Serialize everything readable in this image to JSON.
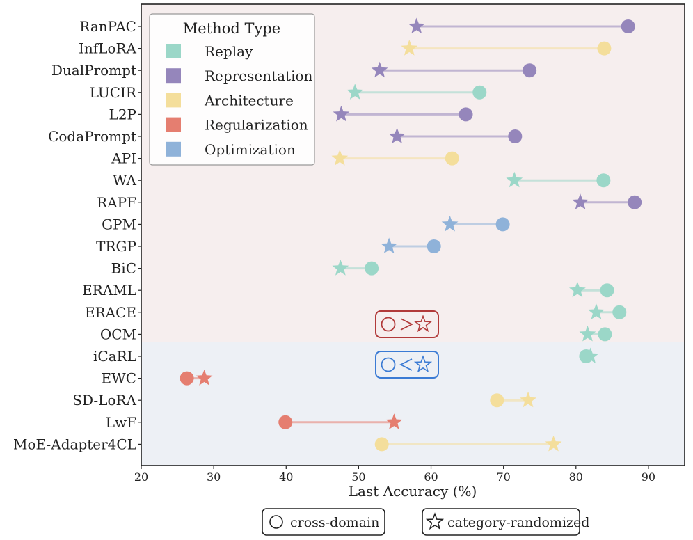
{
  "chart_data": {
    "type": "dumbbell",
    "xlabel": "Last Accuracy (%)",
    "xlim": [
      20,
      95
    ],
    "xticks": [
      20,
      30,
      40,
      50,
      60,
      70,
      80,
      90
    ],
    "legend": {
      "title": "Method Type",
      "placement": "top-left",
      "entries": [
        {
          "type": "Replay",
          "color": "#9bd7c8"
        },
        {
          "type": "Representation",
          "color": "#9586bb"
        },
        {
          "type": "Architecture",
          "color": "#f4de9b"
        },
        {
          "type": "Regularization",
          "color": "#e57e70"
        },
        {
          "type": "Optimization",
          "color": "#8fb2d9"
        }
      ]
    },
    "marker_legend": {
      "circle": "cross-domain",
      "star": "category-randomized"
    },
    "regions": [
      {
        "label": "○>☆",
        "from": "RanPAC",
        "to": "OCM",
        "background": "#f6eeee",
        "box_color": "#b13a3a"
      },
      {
        "label": "○<☆",
        "from": "iCaRL",
        "to": "MoE-Adapter4CL",
        "background": "#edf0f5",
        "box_color": "#3b7bd4"
      }
    ],
    "methods": [
      {
        "name": "RanPAC",
        "type": "Representation",
        "cross_domain": 87.2,
        "category_randomized": 58.0
      },
      {
        "name": "InfLoRA",
        "type": "Architecture",
        "cross_domain": 83.9,
        "category_randomized": 57.0
      },
      {
        "name": "DualPrompt",
        "type": "Representation",
        "cross_domain": 73.6,
        "category_randomized": 52.9
      },
      {
        "name": "LUCIR",
        "type": "Replay",
        "cross_domain": 66.7,
        "category_randomized": 49.5
      },
      {
        "name": "L2P",
        "type": "Representation",
        "cross_domain": 64.8,
        "category_randomized": 47.6
      },
      {
        "name": "CodaPrompt",
        "type": "Representation",
        "cross_domain": 71.6,
        "category_randomized": 55.3
      },
      {
        "name": "API",
        "type": "Architecture",
        "cross_domain": 62.9,
        "category_randomized": 47.4
      },
      {
        "name": "WA",
        "type": "Replay",
        "cross_domain": 83.8,
        "category_randomized": 71.5
      },
      {
        "name": "RAPF",
        "type": "Representation",
        "cross_domain": 88.1,
        "category_randomized": 80.6
      },
      {
        "name": "GPM",
        "type": "Optimization",
        "cross_domain": 69.9,
        "category_randomized": 62.6
      },
      {
        "name": "TRGP",
        "type": "Optimization",
        "cross_domain": 60.4,
        "category_randomized": 54.2
      },
      {
        "name": "BiC",
        "type": "Replay",
        "cross_domain": 51.8,
        "category_randomized": 47.5
      },
      {
        "name": "ERAML",
        "type": "Replay",
        "cross_domain": 84.3,
        "category_randomized": 80.2
      },
      {
        "name": "ERACE",
        "type": "Replay",
        "cross_domain": 86.0,
        "category_randomized": 82.8
      },
      {
        "name": "OCM",
        "type": "Replay",
        "cross_domain": 84.0,
        "category_randomized": 81.6
      },
      {
        "name": "iCaRL",
        "type": "Replay",
        "cross_domain": 81.4,
        "category_randomized": 82.0
      },
      {
        "name": "EWC",
        "type": "Regularization",
        "cross_domain": 26.3,
        "category_randomized": 28.7
      },
      {
        "name": "SD-LoRA",
        "type": "Architecture",
        "cross_domain": 69.1,
        "category_randomized": 73.4
      },
      {
        "name": "LwF",
        "type": "Regularization",
        "cross_domain": 39.9,
        "category_randomized": 54.9
      },
      {
        "name": "MoE-Adapter4CL",
        "type": "Architecture",
        "cross_domain": 53.2,
        "category_randomized": 76.9
      }
    ]
  }
}
